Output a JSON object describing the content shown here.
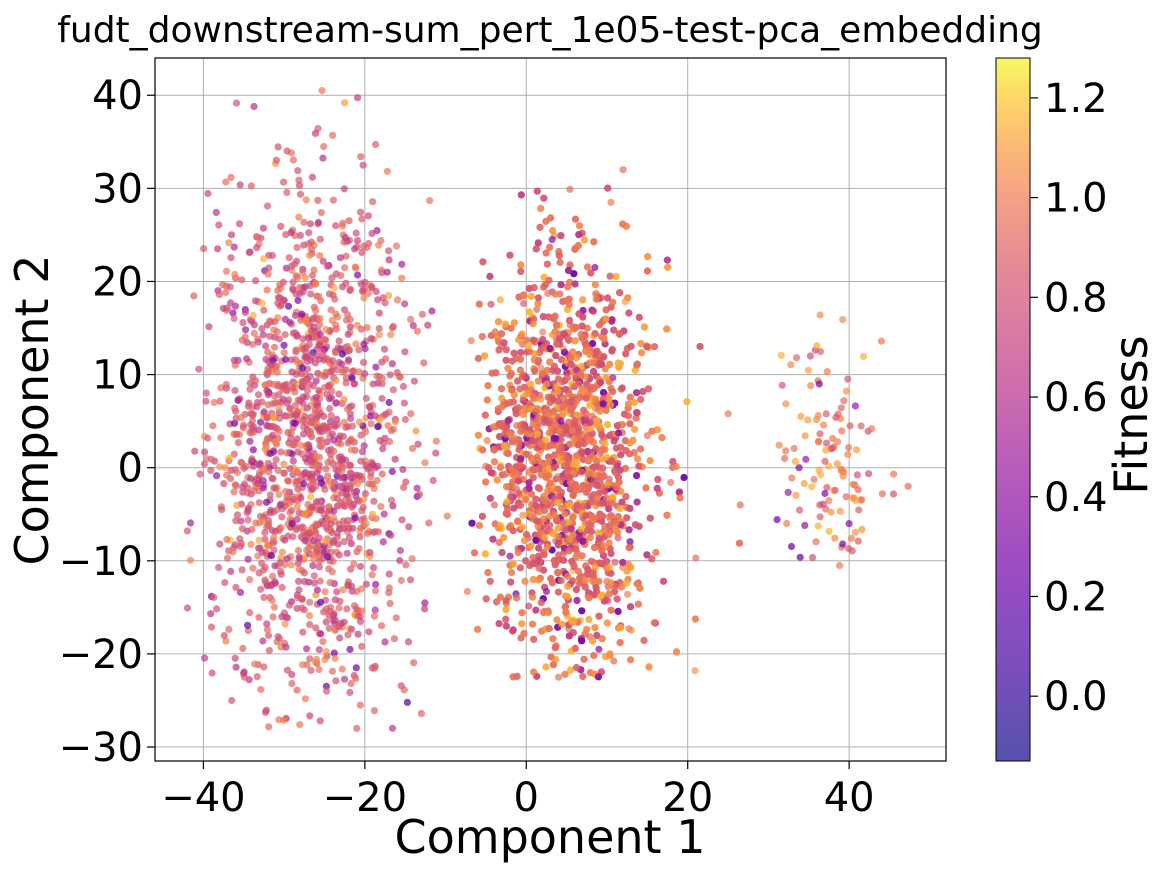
{
  "chart_data": {
    "type": "scatter",
    "title": "fudt_downstream-sum_pert_1e05-test-pca_embedding",
    "xlabel": "Component 1",
    "ylabel": "Component 2",
    "xlim": [
      -46,
      52
    ],
    "ylim": [
      -31.5,
      44
    ],
    "xticks": [
      -40,
      -20,
      0,
      20,
      40
    ],
    "yticks": [
      -30,
      -20,
      -10,
      0,
      10,
      20,
      30,
      40
    ],
    "xtick_labels": [
      "−40",
      "−20",
      "0",
      "20",
      "40"
    ],
    "ytick_labels": [
      "−30",
      "−20",
      "−10",
      "0",
      "10",
      "20",
      "30",
      "40"
    ],
    "grid": true,
    "colormap": "plasma",
    "point_alpha": 0.7,
    "colorbar": {
      "label": "Fitness",
      "range": [
        -0.13,
        1.28
      ],
      "ticks": [
        0.0,
        0.2,
        0.4,
        0.6,
        0.8,
        1.0,
        1.2
      ],
      "tick_labels": [
        "0.0",
        "0.2",
        "0.4",
        "0.6",
        "0.8",
        "1.0",
        "1.2"
      ]
    },
    "clusters": [
      {
        "x_range": [
          -42,
          -11
        ],
        "y_range": [
          -28,
          40.5
        ],
        "center": [
          -27,
          2
        ],
        "typical_fitness": 0.85
      },
      {
        "x_range": [
          -7,
          27
        ],
        "y_range": [
          -22.5,
          32
        ],
        "center": [
          5,
          1
        ],
        "typical_fitness": 0.95
      },
      {
        "x_range": [
          31,
          47
        ],
        "y_range": [
          -10.5,
          16.5
        ],
        "center": [
          37,
          1
        ],
        "typical_fitness": 1.0
      }
    ],
    "points": [
      {
        "x": -25.3,
        "y": 40.5,
        "fitness": 1.0
      },
      {
        "x": -22.5,
        "y": 39.2,
        "fitness": 1.1
      },
      {
        "x": -24.0,
        "y": 35.7,
        "fitness": 0.95
      },
      {
        "x": -20.5,
        "y": 33.4,
        "fitness": 0.9
      },
      {
        "x": -26.5,
        "y": 31.2,
        "fitness": 0.75
      },
      {
        "x": -22.8,
        "y": 12.2,
        "fitness": 0.05
      },
      {
        "x": -20.9,
        "y": 20.7,
        "fitness": 0.3
      },
      {
        "x": -17.0,
        "y": 7.0,
        "fitness": 0.2
      },
      {
        "x": -18.4,
        "y": 4.4,
        "fitness": 0.05
      },
      {
        "x": -29.0,
        "y": -6.0,
        "fitness": 0.3
      },
      {
        "x": -36.5,
        "y": -25.0,
        "fitness": 0.85
      },
      {
        "x": -21.0,
        "y": -28.0,
        "fitness": 0.9
      },
      {
        "x": -42.0,
        "y": -6.8,
        "fitness": 0.85
      },
      {
        "x": -18.0,
        "y": 24.4,
        "fitness": 0.95
      },
      {
        "x": -12.2,
        "y": 15.3,
        "fitness": 0.7
      },
      {
        "x": -13.0,
        "y": -26.4,
        "fitness": 0.9
      },
      {
        "x": 12.0,
        "y": 32.0,
        "fitness": 0.95
      },
      {
        "x": 5.4,
        "y": 29.9,
        "fitness": 0.95
      },
      {
        "x": 10.5,
        "y": 28.5,
        "fitness": 1.0
      },
      {
        "x": 4.0,
        "y": -22.5,
        "fitness": 0.95
      },
      {
        "x": 9.0,
        "y": -19.5,
        "fitness": 0.35
      },
      {
        "x": 3.2,
        "y": 24.5,
        "fitness": 0.4
      },
      {
        "x": 8.5,
        "y": 21.5,
        "fitness": 0.3
      },
      {
        "x": 4.3,
        "y": 5.0,
        "fitness": 0.3
      },
      {
        "x": -2.0,
        "y": -9.5,
        "fitness": 0.4
      },
      {
        "x": 2.5,
        "y": -13.3,
        "fitness": 0.35
      },
      {
        "x": 25.0,
        "y": 5.8,
        "fitness": 1.0
      },
      {
        "x": 26.5,
        "y": -4.0,
        "fitness": 0.95
      },
      {
        "x": 21.0,
        "y": -9.7,
        "fitness": 0.95
      },
      {
        "x": -7.3,
        "y": -13.3,
        "fitness": 1.0
      },
      {
        "x": -9.8,
        "y": -5.2,
        "fitness": 1.0
      },
      {
        "x": 36.4,
        "y": 16.4,
        "fitness": 1.05
      },
      {
        "x": 39.2,
        "y": 15.9,
        "fitness": 1.05
      },
      {
        "x": 44.0,
        "y": 13.6,
        "fitness": 1.0
      },
      {
        "x": 35.2,
        "y": 12.0,
        "fitness": 0.8
      },
      {
        "x": 47.3,
        "y": -2.0,
        "fitness": 0.95
      },
      {
        "x": 38.8,
        "y": -10.5,
        "fitness": 1.0
      },
      {
        "x": 39.2,
        "y": -8.2,
        "fitness": 0.3
      },
      {
        "x": 40.0,
        "y": -6.0,
        "fitness": 0.35
      },
      {
        "x": 34.5,
        "y": -6.2,
        "fitness": 0.4
      },
      {
        "x": 33.8,
        "y": 0.0,
        "fitness": 0.3
      },
      {
        "x": 32.0,
        "y": 1.0,
        "fitness": 0.95
      }
    ]
  }
}
